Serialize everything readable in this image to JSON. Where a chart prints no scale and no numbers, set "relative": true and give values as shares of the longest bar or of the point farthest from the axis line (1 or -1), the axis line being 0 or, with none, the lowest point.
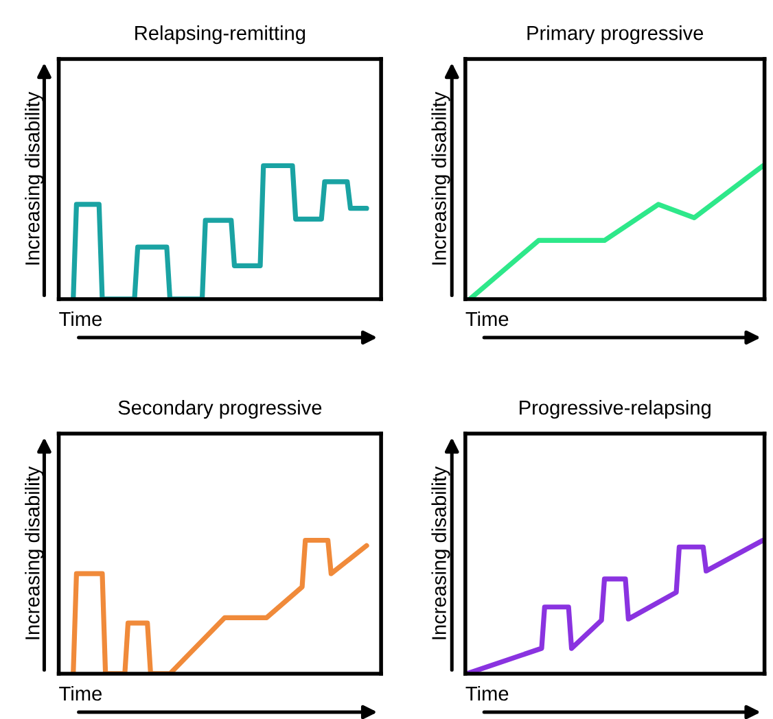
{
  "chart_data": [
    {
      "type": "line",
      "title": "Relapsing-remitting",
      "xlabel": "Time",
      "ylabel": "Increasing disability",
      "relative": true,
      "tick_labels": false,
      "categories": [
        null,
        null,
        null,
        null,
        null,
        null,
        null,
        null,
        null,
        null,
        null,
        null,
        null,
        null,
        null,
        null,
        null,
        null,
        null,
        null,
        null,
        null,
        null,
        null,
        null,
        null,
        null,
        null,
        null,
        null,
        null,
        null,
        null,
        null,
        null,
        null,
        null,
        null,
        null,
        null,
        null,
        null,
        null,
        null,
        null,
        null,
        null,
        null,
        null,
        null,
        null,
        null,
        null,
        null,
        null,
        null,
        null,
        null,
        null,
        null,
        null,
        null,
        null,
        null,
        null,
        null,
        null,
        null,
        null,
        null,
        null,
        null,
        null,
        null,
        null,
        null,
        null,
        null,
        null,
        null,
        null,
        null,
        null,
        null,
        null,
        null,
        null,
        null,
        null,
        null,
        null,
        null,
        null,
        null,
        null,
        null,
        null,
        null,
        null,
        null
      ],
      "series": [
        {
          "color": "#1aa3a3",
          "values": [
            null,
            null,
            null,
            null,
            0,
            0.71,
            null,
            null,
            null,
            null,
            null,
            null,
            0.71,
            0,
            null,
            null,
            null,
            null,
            null,
            null,
            null,
            null,
            null,
            0,
            0.39,
            null,
            null,
            null,
            null,
            null,
            null,
            null,
            null,
            0.39,
            0,
            null,
            null,
            null,
            null,
            null,
            null,
            null,
            null,
            null,
            0,
            0.59,
            null,
            null,
            null,
            null,
            null,
            null,
            null,
            0.59,
            0.25,
            null,
            null,
            null,
            null,
            null,
            null,
            null,
            0.25,
            1,
            null,
            null,
            null,
            null,
            null,
            null,
            null,
            null,
            1,
            0.6,
            null,
            null,
            null,
            null,
            null,
            null,
            null,
            0.6,
            0.88,
            null,
            null,
            null,
            null,
            null,
            null,
            0.88,
            0.68,
            null,
            null,
            null,
            null,
            0.68,
            null,
            null,
            null,
            null
          ]
        }
      ]
    },
    {
      "type": "line",
      "title": "Primary progressive",
      "xlabel": "Time",
      "ylabel": "Increasing disability",
      "relative": true,
      "tick_labels": false,
      "categories": [
        null,
        null,
        null,
        null,
        null,
        null,
        null,
        null,
        null,
        null,
        null,
        null,
        null,
        null,
        null,
        null,
        null,
        null,
        null,
        null,
        null,
        null,
        null,
        null,
        null,
        null,
        null,
        null,
        null,
        null,
        null,
        null,
        null,
        null,
        null,
        null,
        null,
        null,
        null,
        null,
        null,
        null,
        null,
        null,
        null,
        null,
        null,
        null,
        null,
        null,
        null,
        null,
        null,
        null,
        null,
        null,
        null,
        null,
        null,
        null,
        null,
        null,
        null,
        null,
        null,
        null,
        null,
        null,
        null,
        null,
        null,
        null,
        null,
        null,
        null,
        null,
        null,
        null,
        null,
        null,
        null,
        null,
        null,
        null,
        null,
        null,
        null,
        null,
        null,
        null,
        null,
        null,
        null,
        null,
        null,
        null,
        null,
        null,
        null,
        null
      ],
      "series": [
        {
          "color": "#2ee88a",
          "values": [
            null,
            0,
            null,
            null,
            null,
            null,
            null,
            null,
            null,
            null,
            null,
            null,
            null,
            null,
            null,
            null,
            null,
            null,
            null,
            null,
            null,
            null,
            null,
            null,
            0.44,
            null,
            null,
            null,
            null,
            null,
            null,
            null,
            null,
            null,
            null,
            null,
            null,
            null,
            null,
            null,
            null,
            null,
            null,
            null,
            null,
            null,
            0.44,
            null,
            null,
            null,
            null,
            null,
            null,
            null,
            null,
            null,
            null,
            null,
            null,
            null,
            null,
            null,
            null,
            null,
            0.71,
            null,
            null,
            null,
            null,
            null,
            null,
            null,
            null,
            null,
            null,
            null,
            0.61,
            null,
            null,
            null,
            null,
            null,
            null,
            null,
            null,
            null,
            null,
            null,
            null,
            null,
            null,
            null,
            null,
            null,
            null,
            null,
            null,
            null,
            null,
            1
          ]
        }
      ]
    },
    {
      "type": "line",
      "title": "Secondary progressive",
      "xlabel": "Time",
      "ylabel": "Increasing disability",
      "relative": true,
      "tick_labels": false,
      "categories": [
        null,
        null,
        null,
        null,
        null,
        null,
        null,
        null,
        null,
        null,
        null,
        null,
        null,
        null,
        null,
        null,
        null,
        null,
        null,
        null,
        null,
        null,
        null,
        null,
        null,
        null,
        null,
        null,
        null,
        null,
        null,
        null,
        null,
        null,
        null,
        null,
        null,
        null,
        null,
        null,
        null,
        null,
        null,
        null,
        null,
        null,
        null,
        null,
        null,
        null,
        null,
        null,
        null,
        null,
        null,
        null,
        null,
        null,
        null,
        null,
        null,
        null,
        null,
        null,
        null,
        null,
        null,
        null,
        null,
        null,
        null,
        null,
        null,
        null,
        null,
        null,
        null,
        null,
        null,
        null,
        null,
        null,
        null,
        null,
        null,
        null,
        null,
        null,
        null,
        null,
        null,
        null,
        null,
        null,
        null,
        null,
        null,
        null,
        null,
        null
      ],
      "series": [
        {
          "color": "#f08a3a",
          "values": [
            null,
            null,
            null,
            null,
            0,
            0.75,
            null,
            null,
            null,
            null,
            null,
            null,
            null,
            0.75,
            0,
            null,
            null,
            null,
            null,
            null,
            0,
            0.38,
            null,
            null,
            null,
            null,
            null,
            0.38,
            0,
            null,
            null,
            null,
            null,
            null,
            0,
            null,
            null,
            null,
            null,
            null,
            null,
            null,
            null,
            null,
            null,
            null,
            null,
            null,
            null,
            null,
            null,
            0.42,
            null,
            null,
            null,
            null,
            null,
            null,
            null,
            null,
            null,
            null,
            null,
            null,
            0.42,
            null,
            null,
            null,
            null,
            null,
            null,
            null,
            null,
            null,
            null,
            0.65,
            1,
            null,
            null,
            null,
            null,
            null,
            null,
            1,
            0.75,
            null,
            null,
            null,
            null,
            null,
            null,
            null,
            null,
            null,
            null,
            0.96,
            null,
            null,
            null,
            null
          ]
        }
      ]
    },
    {
      "type": "line",
      "title": "Progressive-relapsing",
      "xlabel": "Time",
      "ylabel": "Increasing disability",
      "relative": true,
      "tick_labels": false,
      "categories": [
        null,
        null,
        null,
        null,
        null,
        null,
        null,
        null,
        null,
        null,
        null,
        null,
        null,
        null,
        null,
        null,
        null,
        null,
        null,
        null,
        null,
        null,
        null,
        null,
        null,
        null,
        null,
        null,
        null,
        null,
        null,
        null,
        null,
        null,
        null,
        null,
        null,
        null,
        null,
        null,
        null,
        null,
        null,
        null,
        null,
        null,
        null,
        null,
        null,
        null,
        null,
        null,
        null,
        null,
        null,
        null,
        null,
        null,
        null,
        null,
        null,
        null,
        null,
        null,
        null,
        null,
        null,
        null,
        null,
        null,
        null,
        null,
        null,
        null,
        null,
        null,
        null,
        null,
        null,
        null,
        null,
        null,
        null,
        null,
        null,
        null,
        null,
        null,
        null,
        null,
        null,
        null,
        null,
        null,
        null,
        null,
        null,
        null,
        null,
        null
      ],
      "series": [
        {
          "color": "#8a33e0",
          "values": [
            0,
            null,
            null,
            null,
            null,
            null,
            null,
            null,
            null,
            null,
            null,
            null,
            null,
            null,
            null,
            null,
            null,
            null,
            null,
            null,
            null,
            null,
            null,
            null,
            null,
            0.19,
            0.5,
            null,
            null,
            null,
            null,
            null,
            null,
            null,
            0.5,
            0.19,
            null,
            null,
            null,
            null,
            null,
            null,
            null,
            null,
            null,
            0.4,
            0.71,
            null,
            null,
            null,
            null,
            null,
            null,
            0.71,
            0.41,
            null,
            null,
            null,
            null,
            null,
            null,
            null,
            null,
            null,
            null,
            null,
            null,
            null,
            null,
            null,
            0.61,
            0.95,
            null,
            null,
            null,
            null,
            null,
            null,
            null,
            0.95,
            0.77,
            null,
            null,
            null,
            null,
            null,
            null,
            null,
            null,
            null,
            null,
            null,
            null,
            null,
            null,
            null,
            null,
            null,
            null,
            1
          ]
        }
      ]
    }
  ]
}
